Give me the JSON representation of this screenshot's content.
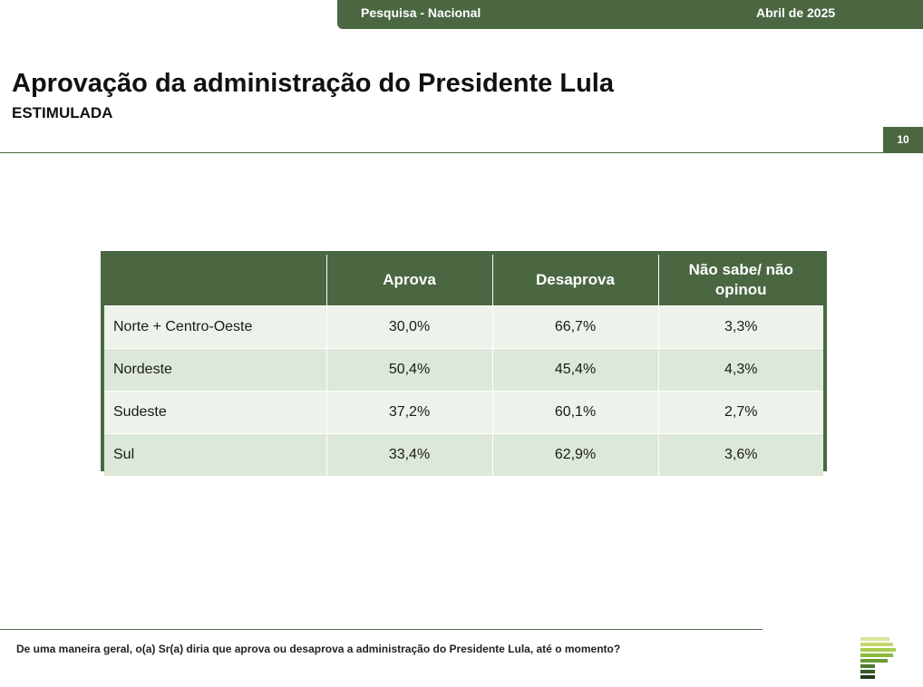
{
  "header": {
    "survey": "Pesquisa - Nacional",
    "date": "Abril de 2025",
    "page_number": "10"
  },
  "title": "Aprovação da administração do Presidente Lula",
  "subtitle": "ESTIMULADA",
  "table": {
    "columns": [
      "",
      "Aprova",
      "Desaprova",
      "Não sabe/ não opinou"
    ],
    "rows": [
      {
        "region": "Norte + Centro-Oeste",
        "aprova": "30,0%",
        "desaprova": "66,7%",
        "nao_sabe": "3,3%"
      },
      {
        "region": "Nordeste",
        "aprova": "50,4%",
        "desaprova": "45,4%",
        "nao_sabe": "4,3%"
      },
      {
        "region": "Sudeste",
        "aprova": "37,2%",
        "desaprova": "60,1%",
        "nao_sabe": "2,7%"
      },
      {
        "region": "Sul",
        "aprova": "33,4%",
        "desaprova": "62,9%",
        "nao_sabe": "3,6%"
      }
    ]
  },
  "footer": {
    "question": "De uma maneira geral, o(a) Sr(a) diria que aprova ou desaprova a administração do Presidente Lula, até o momento?"
  },
  "colors": {
    "brand_green": "#4a6741",
    "row_light": "#edf3ea",
    "row_alt": "#dde9d8"
  }
}
